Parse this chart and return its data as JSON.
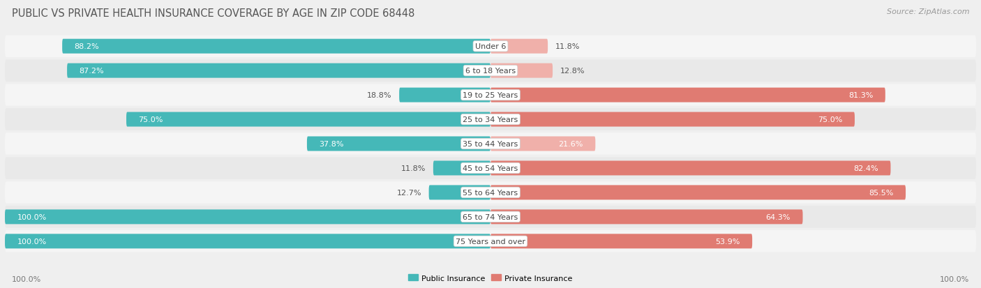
{
  "title": "PUBLIC VS PRIVATE HEALTH INSURANCE COVERAGE BY AGE IN ZIP CODE 68448",
  "source": "Source: ZipAtlas.com",
  "categories": [
    "Under 6",
    "6 to 18 Years",
    "19 to 25 Years",
    "25 to 34 Years",
    "35 to 44 Years",
    "45 to 54 Years",
    "55 to 64 Years",
    "65 to 74 Years",
    "75 Years and over"
  ],
  "public_values": [
    88.2,
    87.2,
    18.8,
    75.0,
    37.8,
    11.8,
    12.7,
    100.0,
    100.0
  ],
  "private_values": [
    11.8,
    12.8,
    81.3,
    75.0,
    21.6,
    82.4,
    85.5,
    64.3,
    53.9
  ],
  "public_color": "#45b8b8",
  "private_color_strong": "#e07b72",
  "private_color_weak": "#f0b0aa",
  "public_label": "Public Insurance",
  "private_label": "Private Insurance",
  "bg_color": "#efefef",
  "row_color_odd": "#f7f7f7",
  "row_color_even": "#e8e8e8",
  "bar_height": 0.6,
  "max_value": 100.0,
  "title_fontsize": 10.5,
  "source_fontsize": 8,
  "label_fontsize": 8,
  "category_fontsize": 8,
  "value_fontsize": 8,
  "footer_fontsize": 8,
  "private_threshold": 40
}
